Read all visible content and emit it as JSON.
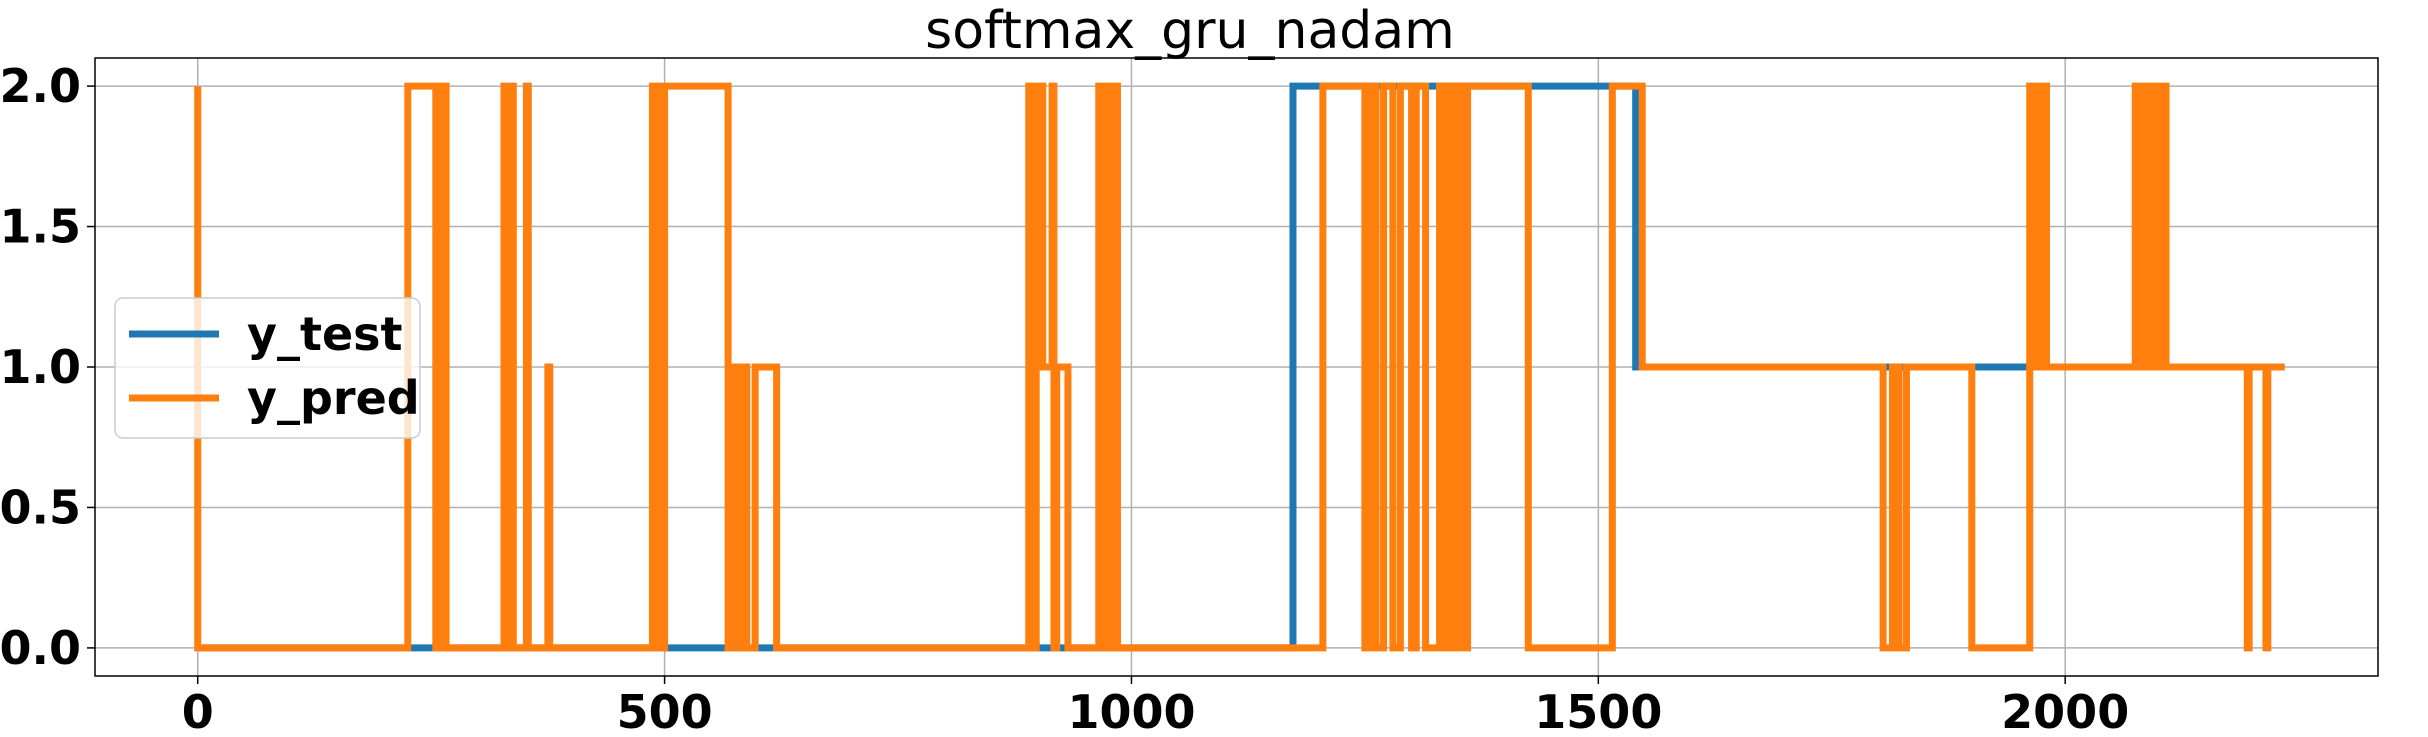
{
  "chart_data": {
    "type": "line",
    "title": "softmax_gru_nadam",
    "xlabel": "",
    "ylabel": "",
    "xlim": [
      -110,
      2335
    ],
    "ylim": [
      -0.1,
      2.1
    ],
    "x_ticks": [
      0,
      500,
      1000,
      1500,
      2000
    ],
    "y_ticks": [
      0.0,
      0.5,
      1.0,
      1.5,
      2.0
    ],
    "x_tick_labels": [
      "0",
      "500",
      "1000",
      "1500",
      "2000"
    ],
    "y_tick_labels": [
      "0.0",
      "0.5",
      "1.0",
      "1.5",
      "2.0"
    ],
    "grid": true,
    "legend": "center-left",
    "series": [
      {
        "name": "y_test",
        "color": "#1f77b4",
        "points": [
          [
            0,
            0
          ],
          [
            1173,
            0
          ],
          [
            1173,
            2
          ],
          [
            1540,
            2
          ],
          [
            1540,
            1
          ],
          [
            2235,
            1
          ]
        ]
      },
      {
        "name": "y_pred",
        "color": "#ff7f0e",
        "points": [
          [
            0,
            2
          ],
          [
            0,
            0
          ],
          [
            225,
            0
          ],
          [
            225,
            2
          ],
          [
            255,
            2
          ],
          [
            255,
            0
          ],
          [
            262,
            0
          ],
          [
            262,
            2
          ],
          [
            266,
            2
          ],
          [
            266,
            0
          ],
          [
            328,
            0
          ],
          [
            328,
            2
          ],
          [
            333,
            2
          ],
          [
            333,
            0
          ],
          [
            336,
            0
          ],
          [
            336,
            2
          ],
          [
            338,
            2
          ],
          [
            338,
            0
          ],
          [
            352,
            0
          ],
          [
            352,
            2
          ],
          [
            354,
            2
          ],
          [
            354,
            0
          ],
          [
            375,
            0
          ],
          [
            375,
            1
          ],
          [
            377,
            1
          ],
          [
            377,
            0
          ],
          [
            487,
            0
          ],
          [
            487,
            2
          ],
          [
            490,
            2
          ],
          [
            490,
            0
          ],
          [
            495,
            0
          ],
          [
            495,
            2
          ],
          [
            498,
            2
          ],
          [
            498,
            0
          ],
          [
            500,
            0
          ],
          [
            500,
            2
          ],
          [
            568,
            2
          ],
          [
            568,
            0
          ],
          [
            574,
            0
          ],
          [
            574,
            1
          ],
          [
            578,
            1
          ],
          [
            578,
            0
          ],
          [
            582,
            0
          ],
          [
            582,
            1
          ],
          [
            588,
            1
          ],
          [
            588,
            0
          ],
          [
            597,
            0
          ],
          [
            597,
            1
          ],
          [
            620,
            1
          ],
          [
            620,
            0
          ],
          [
            890,
            0
          ],
          [
            890,
            2
          ],
          [
            895,
            2
          ],
          [
            895,
            0
          ],
          [
            898,
            0
          ],
          [
            898,
            2
          ],
          [
            905,
            2
          ],
          [
            905,
            1
          ],
          [
            915,
            1
          ],
          [
            915,
            2
          ],
          [
            917,
            2
          ],
          [
            917,
            0
          ],
          [
            920,
            0
          ],
          [
            920,
            1
          ],
          [
            932,
            1
          ],
          [
            932,
            0
          ],
          [
            965,
            0
          ],
          [
            965,
            2
          ],
          [
            968,
            2
          ],
          [
            968,
            0
          ],
          [
            972,
            0
          ],
          [
            972,
            2
          ],
          [
            976,
            2
          ],
          [
            976,
            0
          ],
          [
            980,
            0
          ],
          [
            980,
            2
          ],
          [
            985,
            2
          ],
          [
            985,
            0
          ],
          [
            1205,
            0
          ],
          [
            1205,
            2
          ],
          [
            1250,
            2
          ],
          [
            1250,
            0
          ],
          [
            1255,
            0
          ],
          [
            1255,
            2
          ],
          [
            1262,
            2
          ],
          [
            1262,
            0
          ],
          [
            1270,
            0
          ],
          [
            1270,
            2
          ],
          [
            1280,
            2
          ],
          [
            1280,
            0
          ],
          [
            1288,
            0
          ],
          [
            1288,
            2
          ],
          [
            1300,
            2
          ],
          [
            1300,
            0
          ],
          [
            1305,
            0
          ],
          [
            1305,
            2
          ],
          [
            1315,
            2
          ],
          [
            1315,
            0
          ],
          [
            1330,
            0
          ],
          [
            1330,
            2
          ],
          [
            1335,
            2
          ],
          [
            1335,
            0
          ],
          [
            1340,
            0
          ],
          [
            1340,
            2
          ],
          [
            1345,
            2
          ],
          [
            1345,
            0
          ],
          [
            1350,
            0
          ],
          [
            1350,
            2
          ],
          [
            1356,
            2
          ],
          [
            1356,
            0
          ],
          [
            1360,
            0
          ],
          [
            1360,
            2
          ],
          [
            1425,
            2
          ],
          [
            1425,
            0
          ],
          [
            1515,
            0
          ],
          [
            1515,
            2
          ],
          [
            1547,
            2
          ],
          [
            1547,
            1
          ],
          [
            1805,
            1
          ],
          [
            1805,
            0
          ],
          [
            1815,
            0
          ],
          [
            1815,
            1
          ],
          [
            1822,
            1
          ],
          [
            1822,
            0
          ],
          [
            1830,
            0
          ],
          [
            1830,
            1
          ],
          [
            1900,
            1
          ],
          [
            1900,
            0
          ],
          [
            1962,
            0
          ],
          [
            1962,
            2
          ],
          [
            1965,
            2
          ],
          [
            1965,
            1
          ],
          [
            1968,
            1
          ],
          [
            1968,
            2
          ],
          [
            1972,
            2
          ],
          [
            1972,
            1
          ],
          [
            1976,
            1
          ],
          [
            1976,
            2
          ],
          [
            1980,
            2
          ],
          [
            1980,
            1
          ],
          [
            2075,
            1
          ],
          [
            2075,
            2
          ],
          [
            2078,
            2
          ],
          [
            2078,
            1
          ],
          [
            2085,
            1
          ],
          [
            2085,
            2
          ],
          [
            2090,
            2
          ],
          [
            2090,
            1
          ],
          [
            2095,
            1
          ],
          [
            2095,
            2
          ],
          [
            2100,
            2
          ],
          [
            2100,
            1
          ],
          [
            2105,
            1
          ],
          [
            2105,
            2
          ],
          [
            2108,
            2
          ],
          [
            2108,
            1
          ],
          [
            2195,
            1
          ],
          [
            2195,
            0
          ],
          [
            2197,
            0
          ],
          [
            2197,
            1
          ],
          [
            2215,
            1
          ],
          [
            2215,
            0
          ],
          [
            2217,
            0
          ],
          [
            2217,
            1
          ],
          [
            2235,
            1
          ]
        ]
      }
    ]
  }
}
